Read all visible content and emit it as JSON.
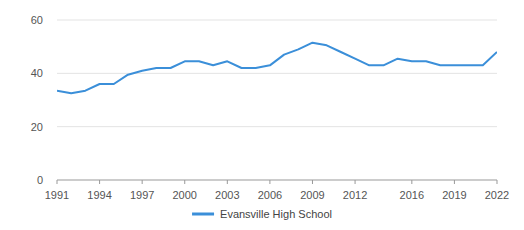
{
  "chart_data": {
    "type": "line",
    "x": [
      1991,
      1992,
      1993,
      1994,
      1995,
      1996,
      1997,
      1998,
      1999,
      2000,
      2001,
      2002,
      2003,
      2004,
      2005,
      2006,
      2007,
      2008,
      2009,
      2010,
      2011,
      2012,
      2013,
      2014,
      2015,
      2016,
      2017,
      2018,
      2019,
      2020,
      2021,
      2022
    ],
    "series": [
      {
        "name": "Evansville High School",
        "color": "#3b8fd9",
        "values": [
          33.5,
          32.5,
          33.5,
          36,
          36,
          39.5,
          41,
          42,
          42,
          44.5,
          44.5,
          43,
          44.5,
          42,
          42,
          43,
          47,
          49,
          51.5,
          50.5,
          48,
          45.5,
          43,
          43,
          45.5,
          44.5,
          44.5,
          43,
          43,
          43,
          43,
          48
        ]
      }
    ],
    "xlim": [
      1991,
      2022
    ],
    "xticks": [
      1991,
      1994,
      1997,
      2000,
      2003,
      2006,
      2009,
      2012,
      2016,
      2019,
      2022
    ],
    "ylim": [
      0,
      60
    ],
    "yticks": [
      0,
      20,
      40,
      60
    ],
    "grid": true,
    "legend": "bottom"
  }
}
